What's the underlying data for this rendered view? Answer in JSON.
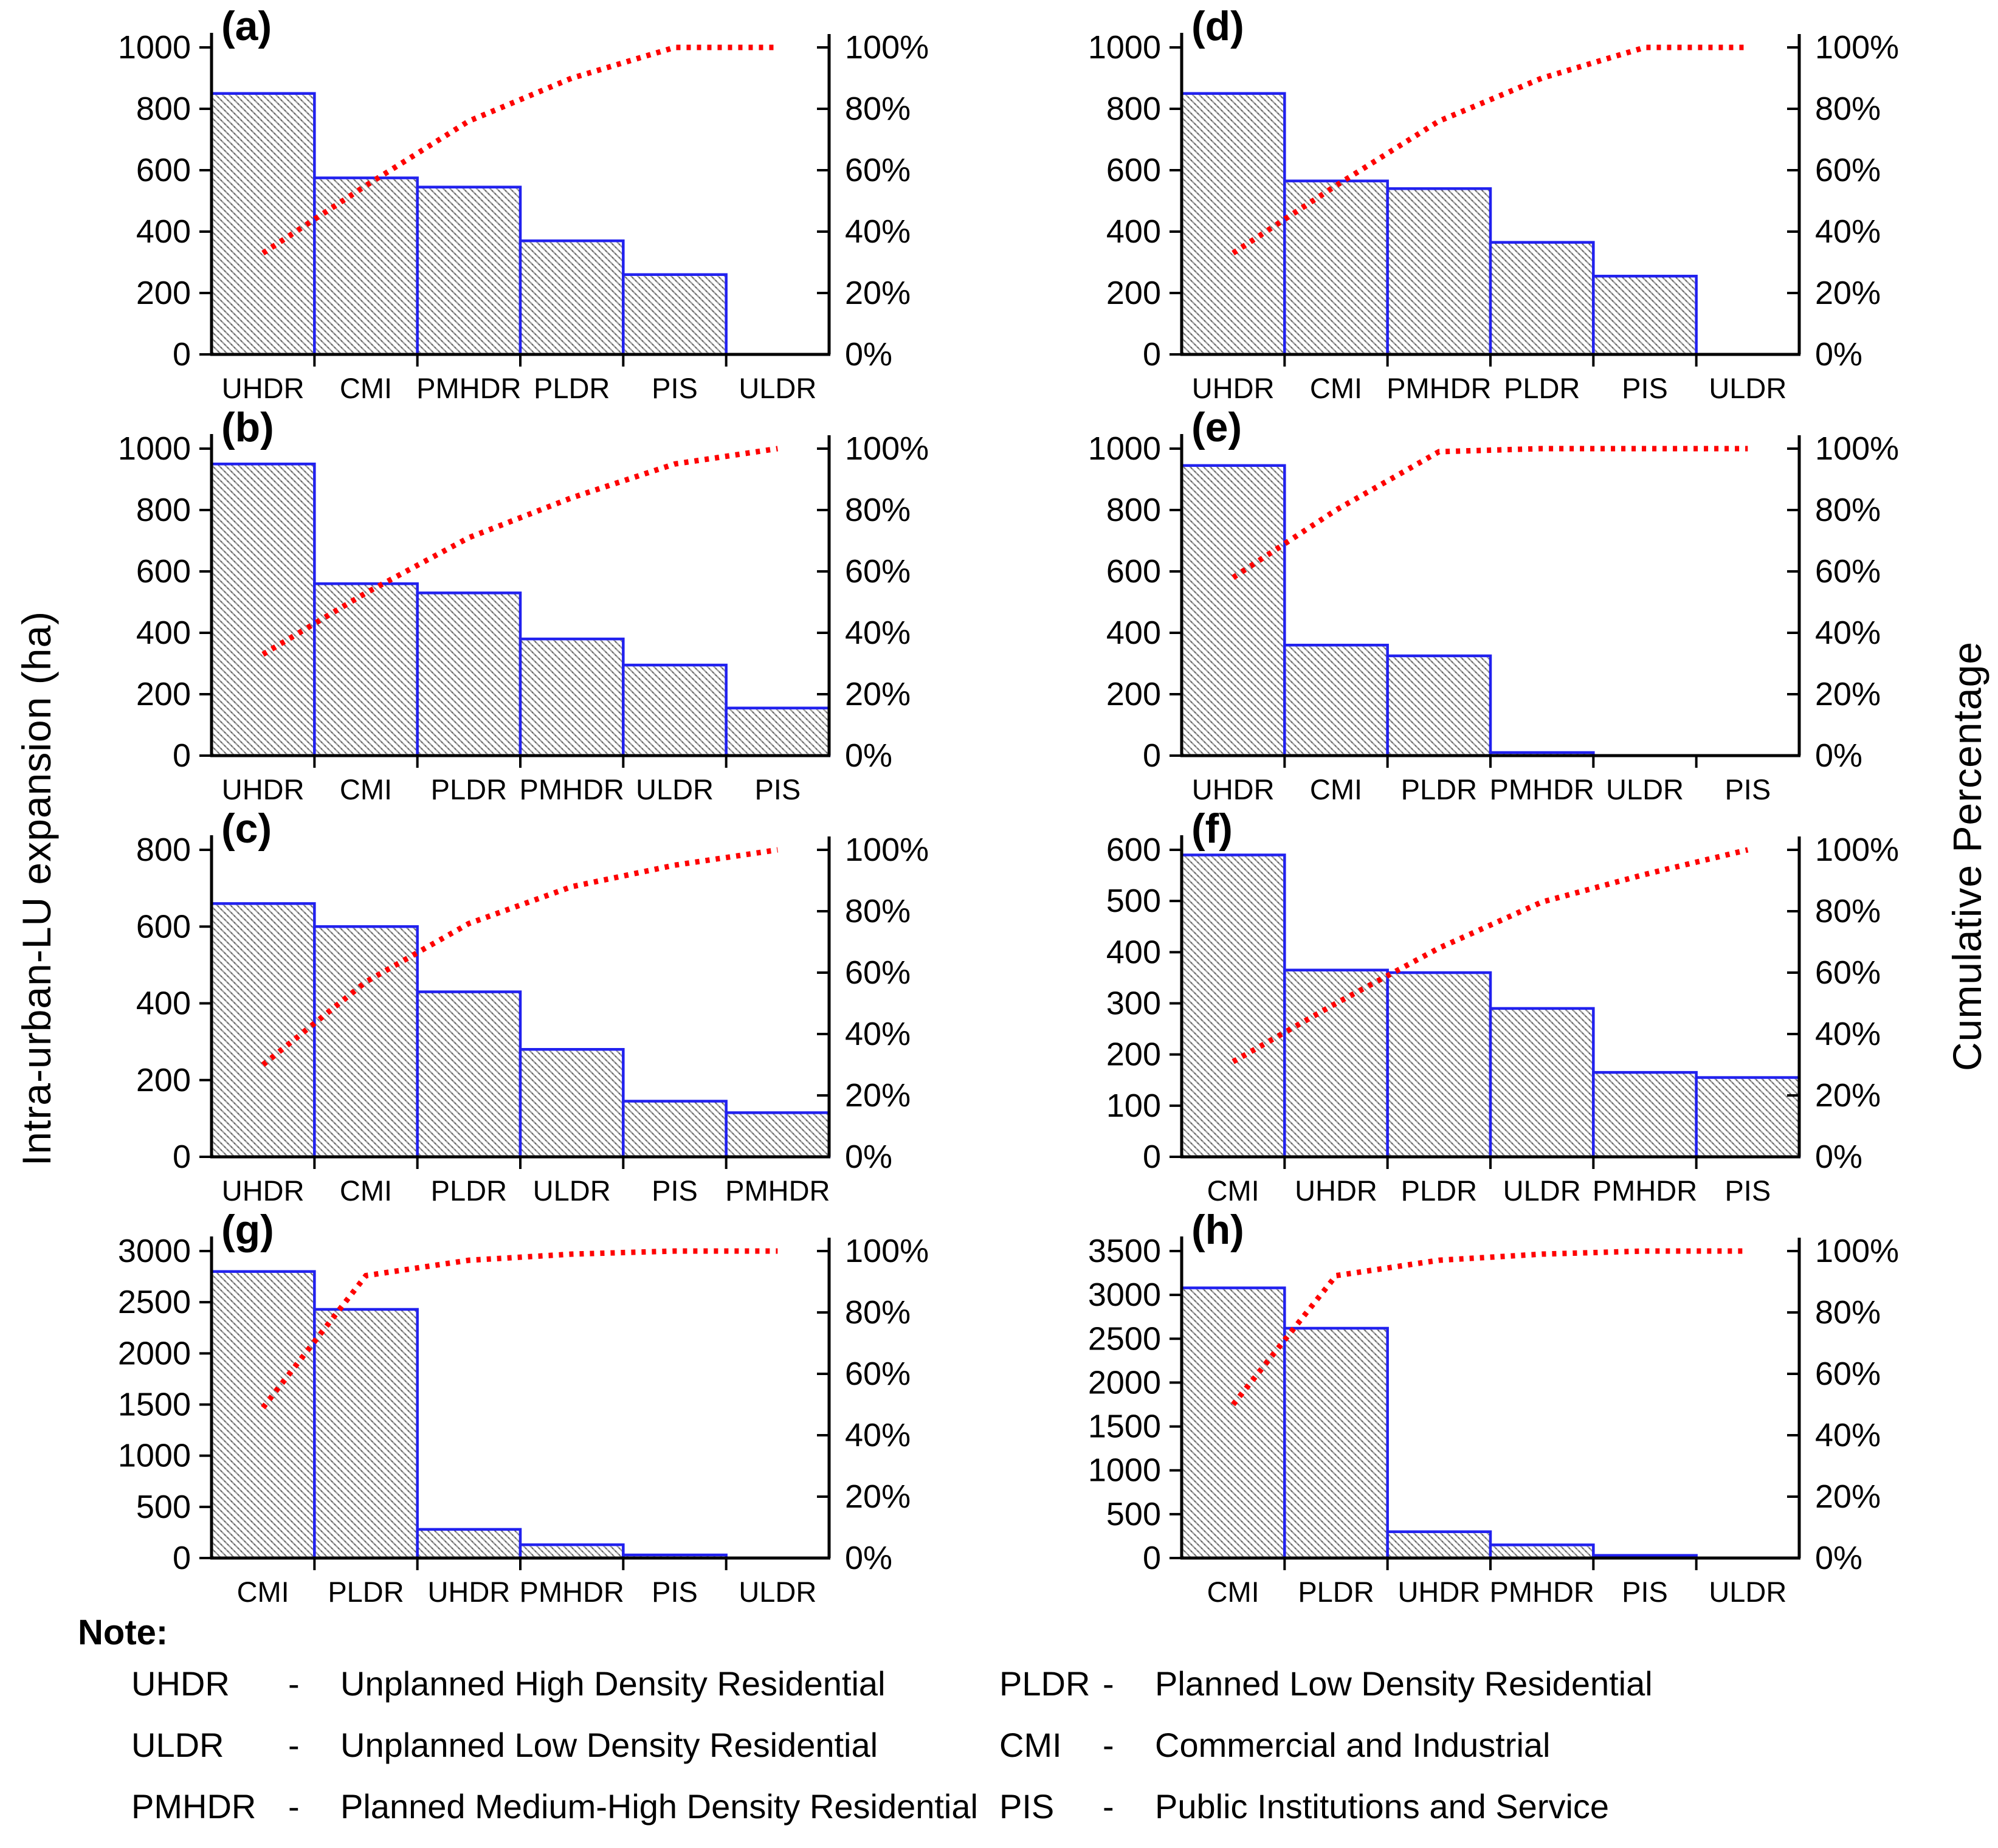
{
  "figure": {
    "left_axis_label": "Intra-urban-LU expansion (ha)",
    "right_axis_label": "Cumulative Percentage",
    "colors": {
      "bar_outline": "#2121ef",
      "bar_fill_background": "#ffffff",
      "hatch_line": "#9d9d9d",
      "cumulative_line": "#fe0000",
      "axis": "#000000",
      "text": "#000000"
    },
    "right_axis_ticks": [
      "0%",
      "20%",
      "40%",
      "60%",
      "80%",
      "100%"
    ]
  },
  "chart_data": [
    {
      "panel": "(a)",
      "type": "bar",
      "categories": [
        "UHDR",
        "CMI",
        "PMHDR",
        "PLDR",
        "PIS",
        "ULDR"
      ],
      "values": [
        850,
        575,
        545,
        370,
        260,
        0
      ],
      "cumulative_percent": [
        33,
        55,
        76,
        90,
        100,
        100
      ],
      "ylabel": "Intra-urban-LU expansion (ha)",
      "ylim": [
        0,
        1000
      ],
      "ytick_step": 200,
      "right_ylim": [
        0,
        100
      ]
    },
    {
      "panel": "(d)",
      "type": "bar",
      "categories": [
        "UHDR",
        "CMI",
        "PMHDR",
        "PLDR",
        "PIS",
        "ULDR"
      ],
      "values": [
        850,
        565,
        540,
        365,
        255,
        0
      ],
      "cumulative_percent": [
        33,
        55,
        76,
        90,
        100,
        100
      ],
      "ylabel": "Intra-urban-LU expansion (ha)",
      "ylim": [
        0,
        1000
      ],
      "ytick_step": 200,
      "right_ylim": [
        0,
        100
      ]
    },
    {
      "panel": "(b)",
      "type": "bar",
      "categories": [
        "UHDR",
        "CMI",
        "PLDR",
        "PMHDR",
        "ULDR",
        "PIS"
      ],
      "values": [
        950,
        560,
        530,
        380,
        295,
        155
      ],
      "cumulative_percent": [
        33,
        53,
        71,
        84,
        95,
        100
      ],
      "ylabel": "Intra-urban-LU expansion (ha)",
      "ylim": [
        0,
        1000
      ],
      "ytick_step": 200,
      "right_ylim": [
        0,
        100
      ]
    },
    {
      "panel": "(e)",
      "type": "bar",
      "categories": [
        "UHDR",
        "CMI",
        "PLDR",
        "PMHDR",
        "ULDR",
        "PIS"
      ],
      "values": [
        945,
        360,
        325,
        10,
        0,
        0
      ],
      "cumulative_percent": [
        58,
        80,
        99,
        100,
        100,
        100
      ],
      "ylabel": "Intra-urban-LU expansion (ha)",
      "ylim": [
        0,
        1000
      ],
      "ytick_step": 200,
      "right_ylim": [
        0,
        100
      ]
    },
    {
      "panel": "(c)",
      "type": "bar",
      "categories": [
        "UHDR",
        "CMI",
        "PLDR",
        "ULDR",
        "PIS",
        "PMHDR"
      ],
      "values": [
        660,
        600,
        430,
        280,
        145,
        115
      ],
      "cumulative_percent": [
        30,
        57,
        76,
        88,
        95,
        100
      ],
      "ylabel": "Intra-urban-LU expansion (ha)",
      "ylim": [
        0,
        800
      ],
      "ytick_step": 200,
      "right_ylim": [
        0,
        100
      ]
    },
    {
      "panel": "(f)",
      "type": "bar",
      "categories": [
        "CMI",
        "UHDR",
        "PLDR",
        "ULDR",
        "PMHDR",
        "PIS"
      ],
      "values": [
        590,
        365,
        360,
        290,
        165,
        155
      ],
      "cumulative_percent": [
        31,
        50,
        68,
        83,
        92,
        100
      ],
      "ylabel": "Intra-urban-LU expansion (ha)",
      "ylim": [
        0,
        600
      ],
      "ytick_step": 100,
      "right_ylim": [
        0,
        100
      ]
    },
    {
      "panel": "(g)",
      "type": "bar",
      "categories": [
        "CMI",
        "PLDR",
        "UHDR",
        "PMHDR",
        "PIS",
        "ULDR"
      ],
      "values": [
        2800,
        2430,
        280,
        130,
        30,
        0
      ],
      "cumulative_percent": [
        49,
        92,
        97,
        99,
        100,
        100
      ],
      "ylabel": "Intra-urban-LU expansion (ha)",
      "ylim": [
        0,
        3000
      ],
      "ytick_step": 500,
      "right_ylim": [
        0,
        100
      ]
    },
    {
      "panel": "(h)",
      "type": "bar",
      "categories": [
        "CMI",
        "PLDR",
        "UHDR",
        "PMHDR",
        "PIS",
        "ULDR"
      ],
      "values": [
        3080,
        2620,
        300,
        150,
        30,
        0
      ],
      "cumulative_percent": [
        50,
        92,
        97,
        99,
        100,
        100
      ],
      "ylabel": "Intra-urban-LU expansion (ha)",
      "ylim": [
        0,
        3500
      ],
      "ytick_step": 500,
      "right_ylim": [
        0,
        100
      ]
    }
  ],
  "note": {
    "title": "Note:",
    "left_items": [
      {
        "abbr": "UHDR",
        "sep": "-",
        "full": "Unplanned High Density Residential"
      },
      {
        "abbr": "ULDR",
        "sep": "-",
        "full": "Unplanned Low Density Residential"
      },
      {
        "abbr": "PMHDR",
        "sep": "-",
        "full": "Planned Medium-High Density Residential"
      }
    ],
    "right_items": [
      {
        "abbr": "PLDR",
        "sep": "-",
        "full": "Planned Low Density Residential"
      },
      {
        "abbr": "CMI",
        "sep": "-",
        "full": "Commercial and Industrial"
      },
      {
        "abbr": "PIS",
        "sep": "-",
        "full": "Public Institutions and Service"
      }
    ]
  }
}
